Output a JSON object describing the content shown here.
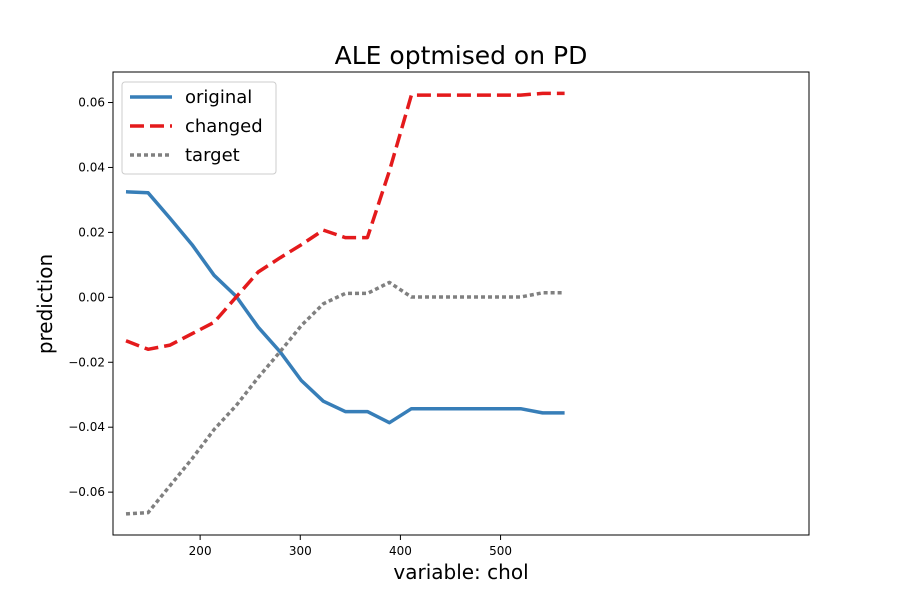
{
  "chart_data": {
    "type": "line",
    "title": "ALE optmised on PD",
    "xlabel": "variable: chol",
    "ylabel": "prediction",
    "xlim": [
      113,
      808
    ],
    "ylim": [
      -0.0732,
      0.0694
    ],
    "xticks": [
      200,
      300,
      400,
      500
    ],
    "yticks": [
      -0.06,
      -0.04,
      -0.02,
      0.0,
      0.02,
      0.04,
      0.06
    ],
    "ytick_labels": [
      "−0.06",
      "−0.04",
      "−0.02",
      "0.00",
      "0.02",
      "0.04",
      "0.06"
    ],
    "grid": false,
    "legend": {
      "position": "top-left"
    },
    "x": [
      126,
      148,
      170,
      192,
      214,
      236,
      258,
      280,
      301,
      323,
      345,
      367,
      389,
      411,
      433,
      454,
      476,
      498,
      520,
      542,
      564
    ],
    "series": [
      {
        "name": "original",
        "color": "#377eb8",
        "style": "solid",
        "values": [
          0.0325,
          0.0322,
          0.0243,
          0.0162,
          0.0068,
          0.0003,
          -0.0092,
          -0.0168,
          -0.0256,
          -0.032,
          -0.0352,
          -0.0352,
          -0.0386,
          -0.0343,
          -0.0343,
          -0.0343,
          -0.0343,
          -0.0343,
          -0.0343,
          -0.0356,
          -0.0356
        ]
      },
      {
        "name": "changed",
        "color": "#e41a1c",
        "style": "dashed",
        "values": [
          -0.0134,
          -0.016,
          -0.0147,
          -0.0112,
          -0.0077,
          0.0001,
          0.0078,
          0.0122,
          0.0162,
          0.0207,
          0.0184,
          0.0184,
          0.0389,
          0.0623,
          0.0623,
          0.0623,
          0.0623,
          0.0623,
          0.0623,
          0.0628,
          0.0628
        ]
      },
      {
        "name": "target",
        "color": "#808080",
        "style": "dotted",
        "values": [
          -0.0667,
          -0.0663,
          -0.058,
          -0.0497,
          -0.0407,
          -0.0333,
          -0.0247,
          -0.0167,
          -0.0087,
          -0.002,
          0.0012,
          0.0012,
          0.0046,
          0.0001,
          0.0001,
          0.0001,
          0.0001,
          0.0001,
          0.0001,
          0.0014,
          0.0014
        ]
      }
    ]
  }
}
